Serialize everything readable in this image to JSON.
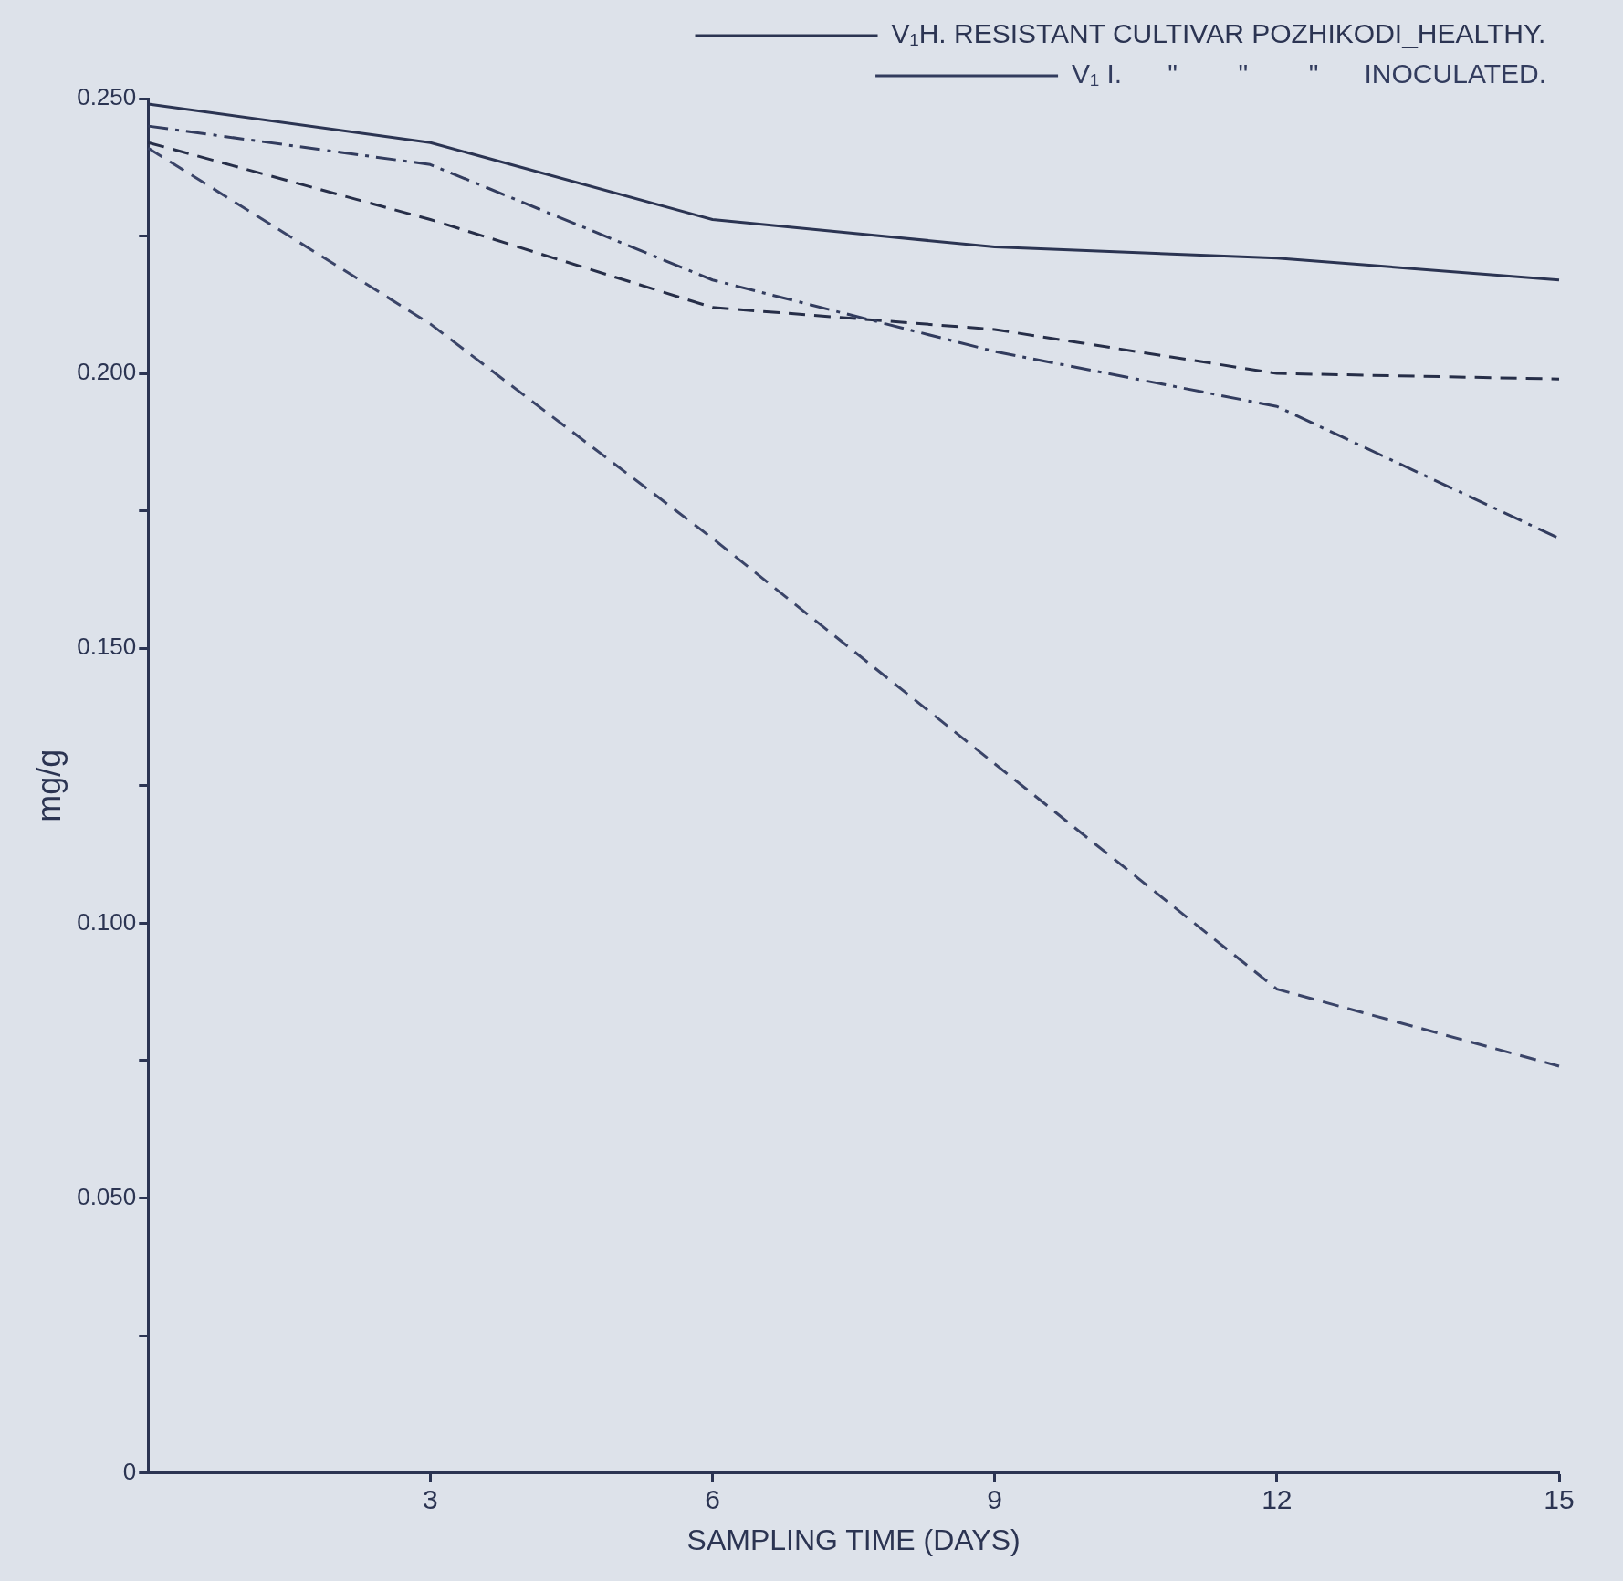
{
  "chart_data": {
    "type": "line",
    "xlabel": "SAMPLING TIME (DAYS)",
    "ylabel": "mg/g",
    "x": [
      0,
      3,
      6,
      9,
      12,
      15
    ],
    "series": [
      {
        "name": "V₁H. RESISTANT CULTIVAR POZHIKODI_HEALTHY.",
        "color": "#2b3452",
        "line_style": "solid",
        "values": [
          0.249,
          0.242,
          0.228,
          0.223,
          0.221,
          0.217
        ]
      },
      {
        "name": "V₁ I.      \"        \"        \"      INOCULATED.",
        "color": "#323c5e",
        "line_style": "dashdot",
        "values": [
          0.245,
          0.238,
          0.217,
          0.204,
          0.194,
          0.17
        ]
      },
      {
        "color": "#262e48",
        "line_style": "dashed",
        "values": [
          0.242,
          0.228,
          0.212,
          0.208,
          0.2,
          0.199
        ]
      },
      {
        "color": "#3a4468",
        "line_style": "dashed",
        "values": [
          0.241,
          0.209,
          0.17,
          0.129,
          0.088,
          0.074
        ]
      }
    ],
    "xlim": [
      0,
      15
    ],
    "xticks": [
      3,
      6,
      9,
      12,
      15
    ],
    "ylim": [
      0,
      0.25
    ],
    "yticks": [
      {
        "value": 0,
        "label": "0"
      },
      {
        "value": 0.025,
        "label": null
      },
      {
        "value": 0.05,
        "label": "0.050"
      },
      {
        "value": 0.075,
        "label": null
      },
      {
        "value": 0.1,
        "label": "0.100"
      },
      {
        "value": 0.125,
        "label": null
      },
      {
        "value": 0.15,
        "label": "0.150"
      },
      {
        "value": 0.175,
        "label": null
      },
      {
        "value": 0.2,
        "label": "0.200"
      },
      {
        "value": 0.225,
        "label": null
      },
      {
        "value": 0.25,
        "label": "0.250"
      }
    ],
    "grid": false,
    "legend": "top right",
    "marker": "none"
  }
}
